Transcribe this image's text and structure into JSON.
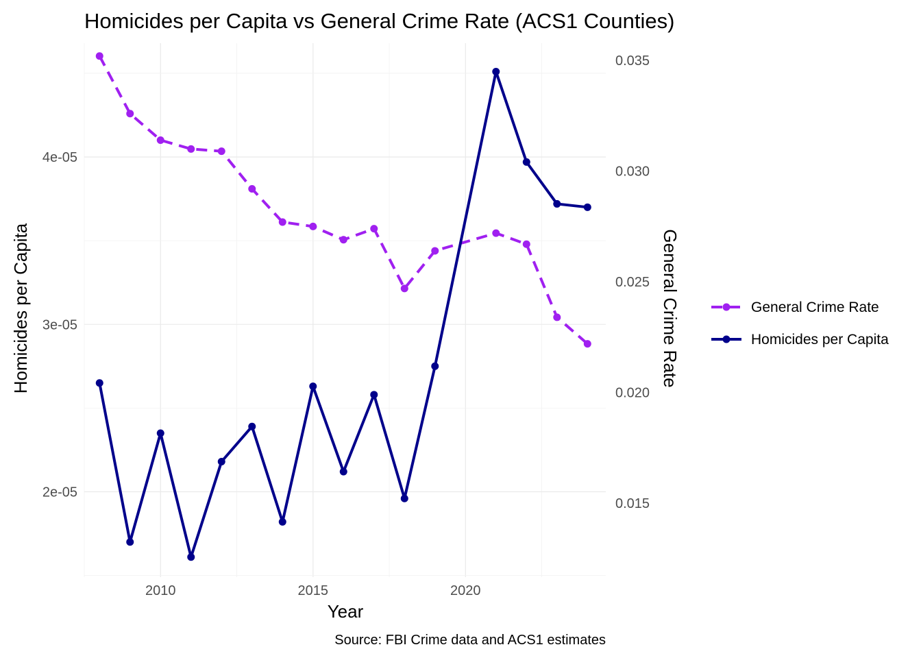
{
  "chart_data": {
    "type": "line",
    "title": "Homicides per Capita vs General Crime Rate (ACS1 Counties)",
    "caption": "Source: FBI Crime data and ACS1 estimates",
    "xlabel": "Year",
    "ylabel_left": "Homicides per Capita",
    "ylabel_right": "General Crime Rate",
    "x_ticks": [
      2010,
      2015,
      2020
    ],
    "xlim": [
      2007.5,
      2024.6
    ],
    "y_left_ticks": [
      {
        "value": 2e-05,
        "label": "2e-05"
      },
      {
        "value": 3e-05,
        "label": "3e-05"
      },
      {
        "value": 4e-05,
        "label": "4e-05"
      }
    ],
    "y_left_lim": [
      1.49e-05,
      4.68e-05
    ],
    "y_right_ticks": [
      {
        "value": 0.015,
        "label": "0.015"
      },
      {
        "value": 0.02,
        "label": "0.020"
      },
      {
        "value": 0.025,
        "label": "0.025"
      },
      {
        "value": 0.03,
        "label": "0.030"
      },
      {
        "value": 0.035,
        "label": "0.035"
      }
    ],
    "y_right_lim": [
      0.01166,
      0.03578
    ],
    "grid": true,
    "legend_position": "right",
    "x": [
      2008,
      2009,
      2010,
      2011,
      2012,
      2013,
      2014,
      2015,
      2016,
      2017,
      2018,
      2019,
      2020,
      2021,
      2022,
      2023,
      2024
    ],
    "series": [
      {
        "name": "General Crime Rate",
        "axis": "right",
        "color": "#a020f0",
        "line_style": "dashed",
        "x": [
          2008,
          2009,
          2010,
          2011,
          2012,
          2013,
          2014,
          2015,
          2016,
          2017,
          2018,
          2019,
          2021,
          2022,
          2023,
          2024
        ],
        "values": [
          0.0352,
          0.0326,
          0.0314,
          0.031,
          0.0309,
          0.0292,
          0.0277,
          0.0275,
          0.0269,
          0.0274,
          0.0247,
          0.0264,
          0.0272,
          0.0267,
          0.0234,
          0.0222
        ]
      },
      {
        "name": "Homicides per Capita",
        "axis": "left",
        "color": "#00008b",
        "line_style": "solid",
        "x": [
          2008,
          2009,
          2010,
          2011,
          2012,
          2013,
          2014,
          2015,
          2016,
          2017,
          2018,
          2019,
          2021,
          2022,
          2023,
          2024
        ],
        "values": [
          2.65e-05,
          1.7e-05,
          2.35e-05,
          1.61e-05,
          2.18e-05,
          2.39e-05,
          1.82e-05,
          2.63e-05,
          2.12e-05,
          2.58e-05,
          1.96e-05,
          2.75e-05,
          4.51e-05,
          3.97e-05,
          3.72e-05,
          3.7e-05
        ]
      }
    ]
  }
}
